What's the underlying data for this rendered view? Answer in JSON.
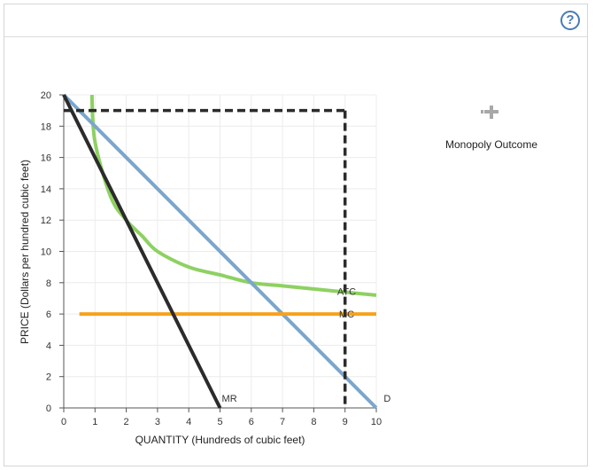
{
  "help": {
    "label": "?"
  },
  "tool": {
    "label": "Monopoly Outcome",
    "icon": "crosshair-move-icon"
  },
  "chart_data": {
    "type": "line",
    "xlabel": "QUANTITY (Hundreds of cubic feet)",
    "ylabel": "PRICE (Dollars per hundred cubic feet)",
    "xlim": [
      0,
      10
    ],
    "ylim": [
      0,
      20
    ],
    "x_ticks": [
      0,
      1,
      2,
      3,
      4,
      5,
      6,
      7,
      8,
      9,
      10
    ],
    "y_ticks": [
      0,
      2,
      4,
      6,
      8,
      10,
      12,
      14,
      16,
      18,
      20
    ],
    "grid": true,
    "series": [
      {
        "name": "D",
        "color": "#7ba6cd",
        "points": [
          [
            0,
            20
          ],
          [
            10,
            0
          ]
        ]
      },
      {
        "name": "MR",
        "color": "#2b2b2b",
        "points": [
          [
            0,
            20
          ],
          [
            5,
            0
          ]
        ]
      },
      {
        "name": "MC",
        "color": "#f7a21b",
        "points": [
          [
            0.5,
            6
          ],
          [
            10,
            6
          ]
        ]
      },
      {
        "name": "ATC",
        "color": "#8ed162",
        "points": [
          [
            0.9,
            20
          ],
          [
            1,
            17
          ],
          [
            1.5,
            13.5
          ],
          [
            2,
            12
          ],
          [
            2.5,
            11
          ],
          [
            3,
            10
          ],
          [
            4,
            9
          ],
          [
            5,
            8.5
          ],
          [
            6,
            8
          ],
          [
            7,
            7.8
          ],
          [
            8,
            7.6
          ],
          [
            9,
            7.4
          ],
          [
            10,
            7.2
          ]
        ]
      }
    ],
    "monopoly_outcome": {
      "quantity": 9,
      "price": 19
    }
  }
}
